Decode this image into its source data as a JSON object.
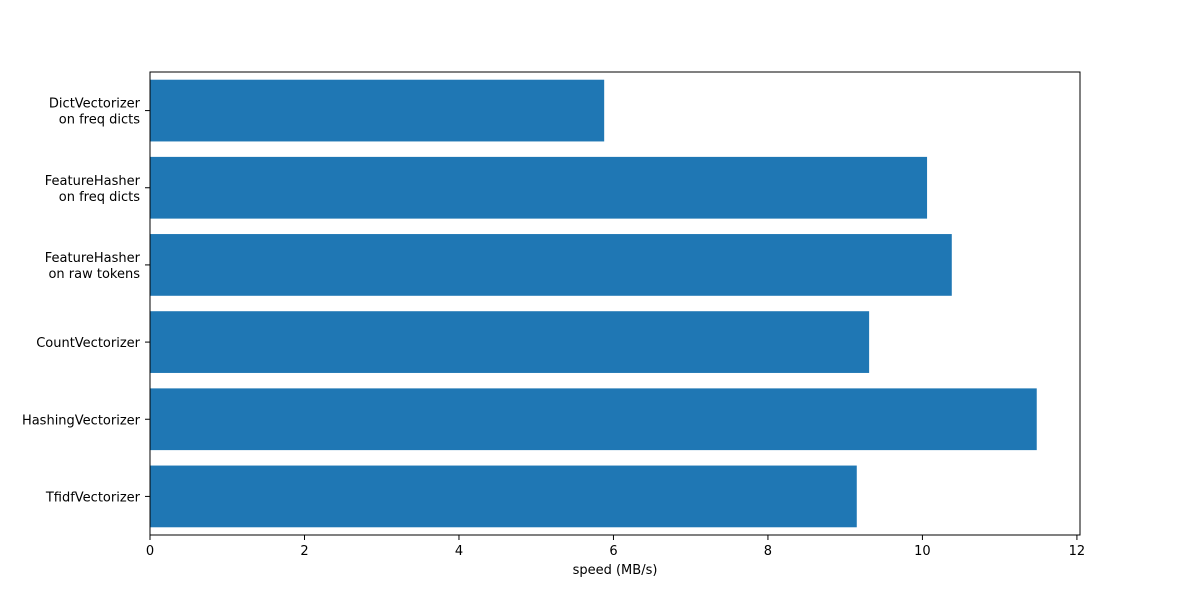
{
  "chart_data": {
    "type": "barh",
    "xlabel": "speed (MB/s)",
    "categories": [
      "DictVectorizer\non freq dicts",
      "FeatureHasher\non freq dicts",
      "FeatureHasher\non raw tokens",
      "CountVectorizer",
      "HashingVectorizer",
      "TfidfVectorizer"
    ],
    "values": [
      5.88,
      10.06,
      10.38,
      9.31,
      11.48,
      9.15
    ],
    "color": "#1f77b4",
    "xlim": [
      0,
      12.04
    ],
    "xticks": [
      0,
      2,
      4,
      6,
      8,
      10,
      12
    ],
    "grid": false
  }
}
